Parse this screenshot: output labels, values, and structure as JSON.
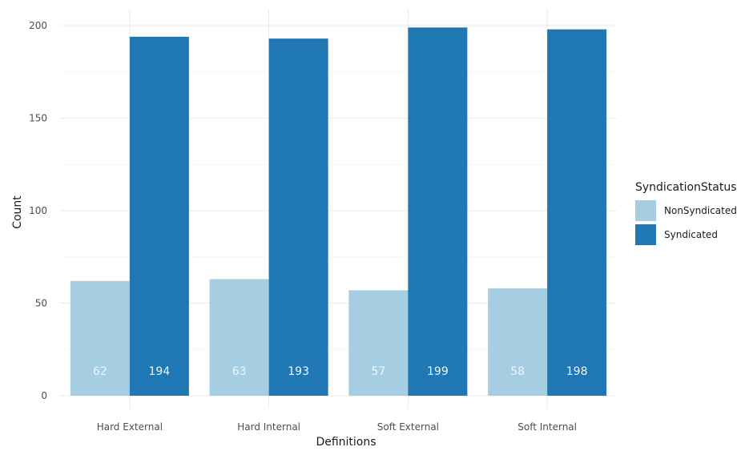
{
  "chart_data": {
    "type": "bar",
    "categories": [
      "Hard External",
      "Hard Internal",
      "Soft External",
      "Soft Internal"
    ],
    "series": [
      {
        "name": "NonSyndicated",
        "values": [
          62,
          63,
          57,
          58
        ],
        "color": "#a6cee3"
      },
      {
        "name": "Syndicated",
        "values": [
          194,
          193,
          199,
          198
        ],
        "color": "#1f78b4"
      }
    ],
    "xlabel": "Definitions",
    "ylabel": "Count",
    "ylim": [
      0,
      200
    ],
    "yticks": [
      0,
      50,
      100,
      150,
      200
    ],
    "grid": true,
    "legend": {
      "title": "SyndicationStatus",
      "placement": "right"
    },
    "label_color": "#f0f4f8"
  }
}
